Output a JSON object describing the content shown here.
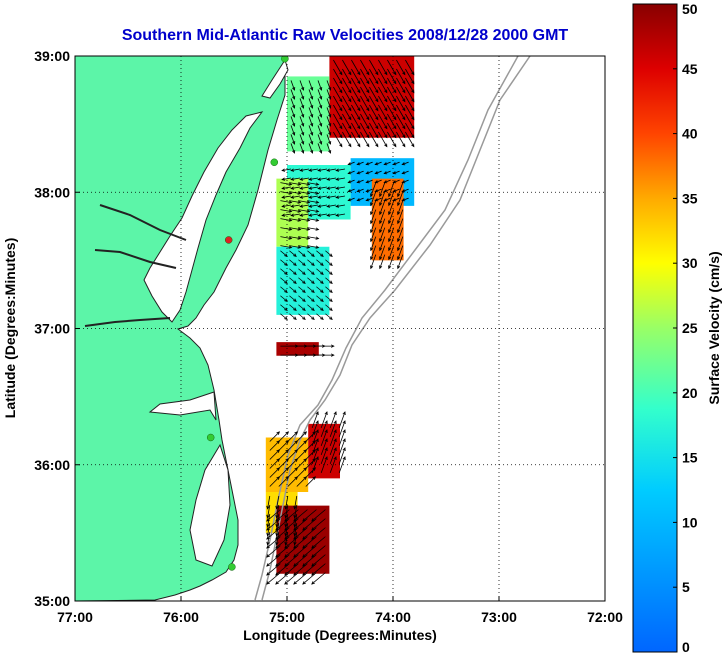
{
  "title": "Southern Mid-Atlantic Raw Velocities 2008/12/28 2000 GMT",
  "colors": {
    "title": "#0000cc",
    "land": "#5cf5a8",
    "ocean": "#ffffff",
    "coast": "#222222",
    "bathymetry": "#9a9a9a",
    "grid": "#000000",
    "vector": "#000000",
    "site_active": "#33cc33",
    "site_other": "#dd2222"
  },
  "map": {
    "xlabel": "Longitude (Degrees:Minutes)",
    "ylabel": "Latitude (Degrees:Minutes)",
    "xlim": [
      -77,
      -72
    ],
    "ylim": [
      35,
      39
    ],
    "x_ticks": [
      {
        "value": -77,
        "label": "77:00"
      },
      {
        "value": -76,
        "label": "76:00"
      },
      {
        "value": -75,
        "label": "75:00"
      },
      {
        "value": -74,
        "label": "74:00"
      },
      {
        "value": -73,
        "label": "73:00"
      },
      {
        "value": -72,
        "label": "72:00"
      }
    ],
    "y_ticks": [
      {
        "value": 35,
        "label": "35:00"
      },
      {
        "value": 36,
        "label": "36:00"
      },
      {
        "value": 37,
        "label": "37:00"
      },
      {
        "value": 38,
        "label": "38:00"
      },
      {
        "value": 39,
        "label": "39:00"
      }
    ],
    "grid": "dotted"
  },
  "colorbar": {
    "label": "Surface Velocity (cm/s)",
    "min": 0,
    "max": 50,
    "ticks": [
      {
        "value": 0,
        "label": "0"
      },
      {
        "value": 5,
        "label": "5"
      },
      {
        "value": 10,
        "label": "10"
      },
      {
        "value": 15,
        "label": "15"
      },
      {
        "value": 20,
        "label": "20"
      },
      {
        "value": 25,
        "label": "25"
      },
      {
        "value": 30,
        "label": "30"
      },
      {
        "value": 35,
        "label": "35"
      },
      {
        "value": 40,
        "label": "40"
      },
      {
        "value": 45,
        "label": "45"
      },
      {
        "value": 50,
        "label": "50"
      }
    ],
    "colormap": "jet"
  },
  "chart_data": {
    "type": "heatmap",
    "title": "Southern Mid-Atlantic Raw Velocities 2008/12/28 2000 GMT",
    "xlabel": "Longitude (Degrees:Minutes)",
    "ylabel": "Latitude (Degrees:Minutes)",
    "value_label": "Surface Velocity (cm/s)",
    "value_range": [
      0,
      50
    ],
    "xlim": [
      -77,
      -72
    ],
    "ylim": [
      35,
      39
    ],
    "regions": [
      {
        "lon": [
          -74.6,
          -73.8
        ],
        "lat": [
          38.4,
          39.0
        ],
        "speed": 46,
        "direction_deg": 150
      },
      {
        "lon": [
          -75.0,
          -74.6
        ],
        "lat": [
          38.3,
          38.85
        ],
        "speed": 22,
        "direction_deg": 160
      },
      {
        "lon": [
          -74.4,
          -73.8
        ],
        "lat": [
          37.9,
          38.25
        ],
        "speed": 10,
        "direction_deg": 250
      },
      {
        "lon": [
          -75.0,
          -74.4
        ],
        "lat": [
          37.8,
          38.2
        ],
        "speed": 18,
        "direction_deg": 260
      },
      {
        "lon": [
          -74.2,
          -73.9
        ],
        "lat": [
          37.5,
          38.1
        ],
        "speed": 38,
        "direction_deg": 200
      },
      {
        "lon": [
          -75.1,
          -74.8
        ],
        "lat": [
          37.6,
          38.1
        ],
        "speed": 26,
        "direction_deg": 100
      },
      {
        "lon": [
          -75.1,
          -74.6
        ],
        "lat": [
          37.1,
          37.6
        ],
        "speed": 17,
        "direction_deg": 130
      },
      {
        "lon": [
          -75.1,
          -74.7
        ],
        "lat": [
          36.8,
          36.9
        ],
        "speed": 48,
        "direction_deg": 90
      },
      {
        "lon": [
          -75.2,
          -74.8
        ],
        "lat": [
          35.8,
          36.2
        ],
        "speed": 34,
        "direction_deg": 45
      },
      {
        "lon": [
          -74.8,
          -74.5
        ],
        "lat": [
          35.9,
          36.3
        ],
        "speed": 46,
        "direction_deg": 20
      },
      {
        "lon": [
          -75.2,
          -74.9
        ],
        "lat": [
          35.5,
          35.8
        ],
        "speed": 32,
        "direction_deg": 190
      },
      {
        "lon": [
          -75.1,
          -74.6
        ],
        "lat": [
          35.2,
          35.7
        ],
        "speed": 49,
        "direction_deg": 230
      }
    ],
    "sites": [
      {
        "lon": -75.02,
        "lat": 38.98,
        "status": "active"
      },
      {
        "lon": -75.12,
        "lat": 38.22,
        "status": "active"
      },
      {
        "lon": -75.55,
        "lat": 37.65,
        "status": "other"
      },
      {
        "lon": -75.72,
        "lat": 36.2,
        "status": "active"
      },
      {
        "lon": -75.52,
        "lat": 35.25,
        "status": "active"
      }
    ]
  }
}
